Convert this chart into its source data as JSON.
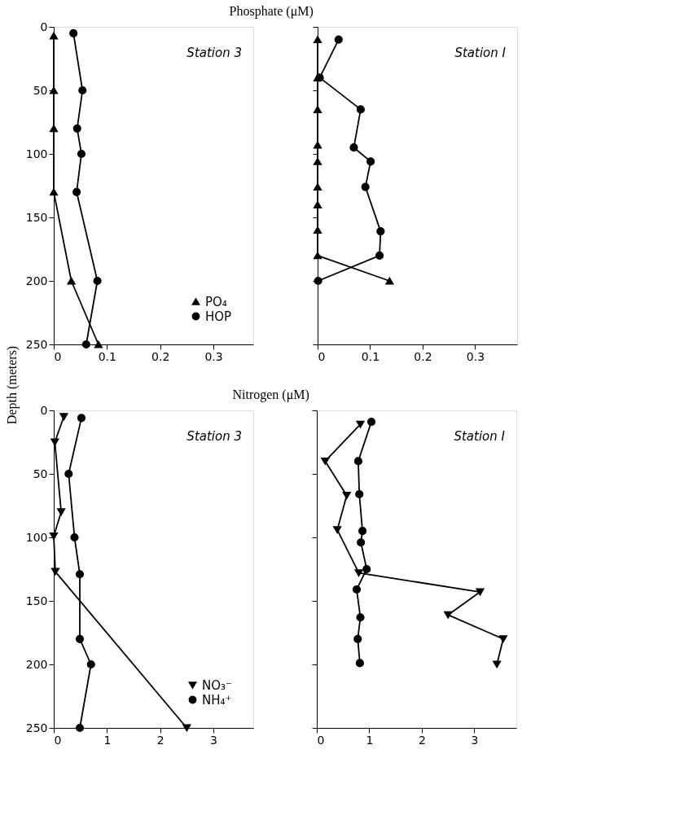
{
  "chart_data": [
    {
      "type": "line",
      "title": "Phosphate (μM)",
      "ylabel": "Depth (meters)",
      "annotations": [
        "Station 3"
      ],
      "xlim": [
        0,
        0.375
      ],
      "xticks": [
        0,
        0.1,
        0.2,
        0.3
      ],
      "ylim": [
        250,
        0
      ],
      "yticks": [
        0,
        50,
        100,
        150,
        200,
        250
      ],
      "grid": false,
      "legend": "bottom right",
      "series": [
        {
          "name": "PO₄",
          "color": "#000000",
          "marker": "triangle",
          "x": [
            0,
            0,
            0,
            0,
            0.033,
            0.084
          ],
          "values": [
            7,
            50,
            80,
            130,
            200,
            250
          ]
        },
        {
          "name": "HOP",
          "color": "#000000",
          "marker": "circle",
          "x": [
            0.037,
            0.054,
            0.044,
            0.052,
            0.043,
            0.082,
            0.061
          ],
          "values": [
            5,
            50,
            80,
            100,
            130,
            200,
            250
          ]
        }
      ]
    },
    {
      "type": "line",
      "annotations": [
        "Station I"
      ],
      "xlim": [
        0,
        0.38
      ],
      "xticks": [
        0,
        0.1,
        0.2,
        0.3
      ],
      "ylim": [
        250,
        0
      ],
      "yticks": [
        0,
        50,
        100,
        150,
        200,
        250
      ],
      "tick_labels": "x",
      "grid": false,
      "series": [
        {
          "color": "#000000",
          "marker": "triangle",
          "x": [
            0,
            0,
            0,
            0,
            0,
            0,
            0,
            0,
            0,
            0.137
          ],
          "values": [
            10,
            40,
            65,
            93,
            106,
            126,
            140,
            160,
            180,
            200
          ]
        },
        {
          "color": "#000000",
          "marker": "circle",
          "x": [
            0.04,
            0.004,
            0.082,
            0.069,
            0.101,
            0.091,
            0.12,
            0.118,
            0.001
          ],
          "values": [
            10,
            40,
            65,
            95,
            106,
            126,
            161,
            180,
            200
          ]
        }
      ]
    },
    {
      "type": "line",
      "title": "Nitrogen (μM)",
      "annotations": [
        "Station 3"
      ],
      "xlim": [
        0,
        3.75
      ],
      "xticks": [
        0,
        1,
        2,
        3
      ],
      "ylim": [
        250,
        0
      ],
      "yticks": [
        0,
        50,
        100,
        150,
        200,
        250
      ],
      "grid": false,
      "legend": "bottom right",
      "series": [
        {
          "name": "NO₃⁻",
          "color": "#000000",
          "marker": "triangle-down",
          "x": [
            0.19,
            0.02,
            0.14,
            0,
            0.03,
            2.5
          ],
          "values": [
            5,
            25,
            80,
            99,
            127,
            250
          ]
        },
        {
          "name": "NH₄⁺",
          "color": "#000000",
          "marker": "circle",
          "x": [
            0.52,
            0.28,
            0.39,
            0.49,
            0.49,
            0.7,
            0.49
          ],
          "values": [
            6,
            50,
            100,
            129,
            180,
            200,
            250
          ]
        }
      ]
    },
    {
      "type": "line",
      "annotations": [
        "Station I"
      ],
      "xlim": [
        0,
        3.8
      ],
      "xticks": [
        0,
        1,
        2,
        3
      ],
      "ylim": [
        250,
        0
      ],
      "yticks": [
        0,
        50,
        100,
        150,
        200,
        250
      ],
      "tick_labels": "x",
      "grid": false,
      "series": [
        {
          "color": "#000000",
          "marker": "triangle-down",
          "x": [
            0.83,
            0.16,
            0.57,
            0.39,
            0.8,
            3.11,
            2.5,
            3.55,
            3.43
          ],
          "values": [
            11,
            40,
            67,
            94,
            128,
            143,
            161,
            180,
            200
          ]
        },
        {
          "color": "#000000",
          "marker": "circle",
          "x": [
            1.04,
            0.79,
            0.81,
            0.87,
            0.84,
            0.95,
            0.76,
            0.83,
            0.78,
            0.82
          ],
          "values": [
            9,
            40,
            66,
            95,
            104,
            125,
            141,
            163,
            180,
            199
          ]
        }
      ]
    }
  ]
}
